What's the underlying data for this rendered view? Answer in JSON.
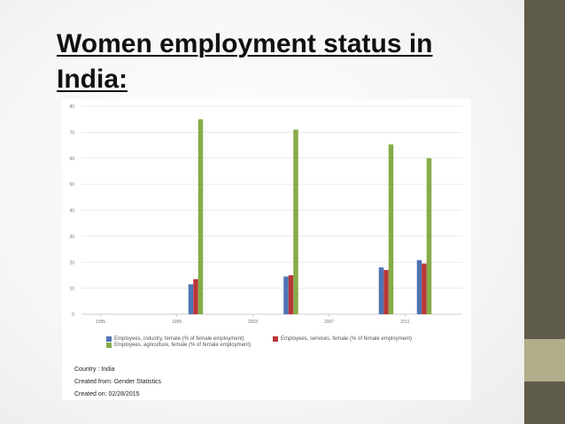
{
  "slide": {
    "title": "Women employment status in\nIndia:",
    "colors": {
      "sidebar": "#5f5b4b",
      "sidebar_accent": "#b0ad8a"
    }
  },
  "footer": {
    "country": "Country : India",
    "created_from": "Created from: Gender Statistics",
    "created_on": "Created on: 02/28/2015"
  },
  "chart_data": {
    "type": "bar",
    "x_ticks": [
      "1995",
      "1999",
      "2003",
      "2007",
      "2011"
    ],
    "x_range": [
      1994,
      2014
    ],
    "ylim": [
      0,
      80
    ],
    "y_ticks": [
      0,
      10,
      20,
      30,
      40,
      50,
      60,
      70,
      80
    ],
    "grid": true,
    "legend_position": "bottom",
    "series": [
      {
        "name": "Employees, industry, female (% of female employment)",
        "color": "#4e74b5",
        "points": [
          {
            "x": 2000,
            "y": 11.5
          },
          {
            "x": 2005,
            "y": 14.5
          },
          {
            "x": 2010,
            "y": 18
          },
          {
            "x": 2012,
            "y": 20.8
          }
        ]
      },
      {
        "name": "Employees, services, female (% of female employment)",
        "color": "#b9363a",
        "points": [
          {
            "x": 2000,
            "y": 13.5
          },
          {
            "x": 2005,
            "y": 15
          },
          {
            "x": 2010,
            "y": 17
          },
          {
            "x": 2012,
            "y": 19.5
          }
        ]
      },
      {
        "name": "Employees, agriculture, female (% of female employment)",
        "color": "#86ac48",
        "points": [
          {
            "x": 2000,
            "y": 75
          },
          {
            "x": 2005,
            "y": 71
          },
          {
            "x": 2010,
            "y": 65.3
          },
          {
            "x": 2012,
            "y": 60
          }
        ]
      }
    ]
  }
}
